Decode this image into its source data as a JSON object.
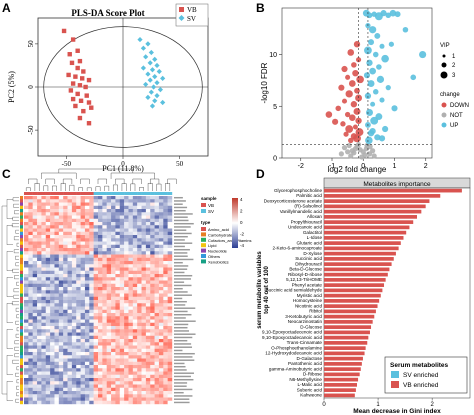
{
  "colors": {
    "vb": "#d9534f",
    "sv": "#5bc0de",
    "not": "#b0b0b0",
    "bar_red": "#d9534f",
    "heat_hi": "#c0392b",
    "heat_lo": "#2c3e94"
  },
  "panels": {
    "A": {
      "label": "A",
      "title": "PLS-DA Score Plot",
      "xlabel": "PC1 (11.8%)",
      "ylabel": "PC2 (5%)",
      "legend": [
        "VB",
        "SV"
      ]
    },
    "B": {
      "label": "B",
      "xlabel": "log2 fold change",
      "ylabel": "-log10 FDR",
      "vip_title": "VIP",
      "vip_values": [
        "1",
        "2",
        "3"
      ],
      "change_title": "change",
      "change_values": [
        "DOWN",
        "NOT",
        "UP"
      ]
    },
    "C": {
      "label": "C",
      "sample_title": "sample",
      "sample_values": [
        "VB",
        "SV"
      ],
      "type_title": "type",
      "type_values": [
        "Amino_acid",
        "Carbohydrate",
        "Cofactors_and_Vitamins",
        "Lipid",
        "Nucleotide",
        "Others",
        "Xenobiotics"
      ],
      "scale_ticks": [
        "4",
        "2",
        "0",
        "-2",
        "-4"
      ]
    },
    "D": {
      "label": "D",
      "title": "Metabolites importance",
      "ylabel_line1": "serum metabolite variables",
      "ylabel_line2": "top 40 out of 100",
      "xlabel": "Mean decrease in Gini index",
      "legend_title": "Serum metabolites",
      "legend_items": [
        "SV enriched",
        "VB enriched"
      ]
    }
  },
  "chart_data": [
    {
      "type": "scatter",
      "title": "PLS-DA Score Plot",
      "xlabel": "PC1 (11.8%)",
      "ylabel": "PC2 (5%)",
      "xlim": [
        -75,
        75
      ],
      "ylim": [
        -80,
        80
      ],
      "xticks": [
        "-50",
        "0",
        "50"
      ],
      "yticks": [
        "50",
        "0",
        "-50"
      ],
      "series": [
        {
          "name": "VB",
          "points": [
            [
              -52,
              65
            ],
            [
              -44,
              55
            ],
            [
              -40,
              42
            ],
            [
              -47,
              38
            ],
            [
              -38,
              30
            ],
            [
              -45,
              28
            ],
            [
              -40,
              22
            ],
            [
              -35,
              18
            ],
            [
              -48,
              14
            ],
            [
              -42,
              12
            ],
            [
              -36,
              10
            ],
            [
              -30,
              8
            ],
            [
              -44,
              4
            ],
            [
              -38,
              2
            ],
            [
              -33,
              0
            ],
            [
              -46,
              -4
            ],
            [
              -40,
              -8
            ],
            [
              -32,
              -10
            ],
            [
              -44,
              -14
            ],
            [
              -37,
              -16
            ],
            [
              -30,
              -18
            ],
            [
              -42,
              -22
            ],
            [
              -35,
              -28
            ],
            [
              -28,
              -24
            ],
            [
              -38,
              -36
            ],
            [
              -30,
              -42
            ]
          ]
        },
        {
          "name": "SV",
          "points": [
            [
              15,
              55
            ],
            [
              22,
              50
            ],
            [
              18,
              45
            ],
            [
              25,
              40
            ],
            [
              20,
              35
            ],
            [
              28,
              32
            ],
            [
              24,
              28
            ],
            [
              30,
              25
            ],
            [
              18,
              22
            ],
            [
              26,
              20
            ],
            [
              32,
              18
            ],
            [
              22,
              15
            ],
            [
              28,
              12
            ],
            [
              35,
              10
            ],
            [
              24,
              8
            ],
            [
              30,
              5
            ],
            [
              20,
              3
            ],
            [
              27,
              0
            ],
            [
              33,
              -3
            ],
            [
              25,
              -6
            ],
            [
              30,
              -10
            ],
            [
              22,
              -12
            ],
            [
              28,
              -16
            ],
            [
              35,
              -18
            ],
            [
              26,
              -22
            ]
          ]
        }
      ]
    },
    {
      "type": "scatter",
      "title": "",
      "xlabel": "log2 fold change",
      "ylabel": "-log10 FDR",
      "xlim": [
        -2.6,
        2.2
      ],
      "ylim": [
        0,
        14.5
      ],
      "xticks": [
        "-2",
        "-1",
        "0",
        "1",
        "2"
      ],
      "yticks": [
        "0",
        "5",
        "10"
      ],
      "series": [
        {
          "name": "DOWN",
          "points": [
            [
              -0.2,
              11.0
            ],
            [
              -0.4,
              10.2
            ],
            [
              -0.15,
              9.5
            ],
            [
              -0.3,
              9.0
            ],
            [
              -0.6,
              8.6
            ],
            [
              -0.25,
              8.2
            ],
            [
              -0.5,
              7.8
            ],
            [
              -0.1,
              7.6
            ],
            [
              -0.35,
              7.2
            ],
            [
              -0.7,
              6.8
            ],
            [
              -0.2,
              6.5
            ],
            [
              -0.45,
              6.2
            ],
            [
              -0.15,
              5.8
            ],
            [
              -0.6,
              5.5
            ],
            [
              -0.3,
              5.2
            ],
            [
              -0.8,
              4.8
            ],
            [
              -0.2,
              4.5
            ],
            [
              -0.5,
              4.2
            ],
            [
              -0.35,
              3.9
            ],
            [
              -0.15,
              3.6
            ],
            [
              -0.65,
              3.3
            ],
            [
              -0.25,
              3.0
            ],
            [
              -0.45,
              2.8
            ],
            [
              -0.12,
              2.5
            ],
            [
              -0.55,
              2.3
            ],
            [
              -0.3,
              2.1
            ],
            [
              -0.2,
              1.9
            ],
            [
              -0.4,
              1.7
            ],
            [
              -0.9,
              3.5
            ],
            [
              -1.1,
              4.2
            ]
          ]
        },
        {
          "name": "NOT",
          "points": [
            [
              -0.3,
              0.5
            ],
            [
              -0.1,
              0.8
            ],
            [
              0.05,
              0.3
            ],
            [
              -0.5,
              0.6
            ],
            [
              -0.2,
              1.1
            ],
            [
              0.1,
              0.9
            ],
            [
              -0.4,
              0.2
            ],
            [
              0.2,
              0.4
            ],
            [
              -0.6,
              1.0
            ],
            [
              0.3,
              0.7
            ],
            [
              -0.15,
              1.3
            ],
            [
              0.12,
              1.2
            ],
            [
              -0.05,
              0.1
            ],
            [
              -0.25,
              0.9
            ],
            [
              0.22,
              1.1
            ],
            [
              -0.7,
              0.4
            ],
            [
              0.35,
              0.2
            ],
            [
              -0.45,
              1.2
            ],
            [
              0.0,
              0.6
            ],
            [
              -0.35,
              0.7
            ]
          ]
        },
        {
          "name": "UP",
          "points": [
            [
              0.1,
              14.0
            ],
            [
              0.2,
              13.8
            ],
            [
              0.35,
              13.9
            ],
            [
              0.5,
              13.7
            ],
            [
              0.65,
              14.0
            ],
            [
              0.8,
              13.8
            ],
            [
              0.95,
              14.0
            ],
            [
              1.1,
              13.9
            ],
            [
              0.15,
              12.8
            ],
            [
              0.3,
              12.4
            ],
            [
              0.45,
              11.8
            ],
            [
              0.25,
              11.2
            ],
            [
              0.6,
              10.8
            ],
            [
              0.15,
              10.4
            ],
            [
              0.4,
              10.0
            ],
            [
              0.7,
              9.6
            ],
            [
              0.2,
              9.2
            ],
            [
              0.5,
              8.8
            ],
            [
              0.3,
              8.4
            ],
            [
              0.12,
              8.0
            ],
            [
              0.55,
              7.6
            ],
            [
              0.25,
              7.2
            ],
            [
              0.8,
              6.8
            ],
            [
              0.4,
              6.4
            ],
            [
              0.15,
              6.0
            ],
            [
              0.6,
              5.6
            ],
            [
              0.3,
              5.2
            ],
            [
              1.0,
              4.8
            ],
            [
              0.2,
              4.4
            ],
            [
              0.5,
              4.0
            ],
            [
              0.35,
              3.6
            ],
            [
              0.15,
              3.2
            ],
            [
              0.7,
              2.8
            ],
            [
              0.25,
              2.4
            ],
            [
              0.45,
              2.0
            ],
            [
              0.18,
              1.7
            ],
            [
              0.6,
              1.9
            ],
            [
              0.3,
              2.6
            ],
            [
              1.6,
              7.8
            ],
            [
              1.35,
              12.4
            ],
            [
              1.9,
              10.0
            ],
            [
              0.9,
              11.0
            ]
          ]
        }
      ]
    },
    {
      "type": "heatmap",
      "title": "",
      "rows": 64,
      "cols": 34,
      "column_groups": [
        "VB",
        "SV"
      ],
      "scale": [
        -4,
        4
      ]
    },
    {
      "type": "bar",
      "title": "Metabolites importance",
      "xlabel": "Mean decrease in Gini index",
      "ylabel": "serum metabolite variables top 40 out of 100",
      "categories": [
        "Glycerophosphocholine",
        "Palmitic acid",
        "Deoxycorticosterone acetate",
        "(R)-Salsolinol",
        "Vanillylmandelic acid",
        "Alloxan",
        "Propylthiouracil",
        "Undecanoic acid",
        "Galactitol",
        "L-Idose",
        "Glutaric acid",
        "2-Keto-6-aminocaproate",
        "D-Xylose",
        "Succinic acid",
        "Dihydrouracil",
        "Beta-D-Glucose",
        "Ribosyl-D-ribose",
        "5,12,13-TriHOME",
        "Phenyl acetate",
        "Succinic acid semialdehyde",
        "Myristic acid",
        "Homocysteine",
        "Nicotinic acid",
        "Ribitol",
        "3-Ketobutyric acid",
        "Neocarzinostatin",
        "D-Glucose",
        "9,10-Epoxyoctadecenoic acid",
        "9,10-Epoxyoctadecanoic acid",
        "Trans-Cinnamate",
        "O-Phosphoethanolamine",
        "12-Hydroxydodecanoic acid",
        "D-Galactose",
        "Pantothenic acid",
        "gamma-Aminobutyric acid",
        "D-Ribose",
        "N6-Methyllysine",
        "L-Malic acid",
        "Suberic acid",
        "Kahweone"
      ],
      "values": [
        2.55,
        2.15,
        1.95,
        1.88,
        1.8,
        1.72,
        1.65,
        1.58,
        1.52,
        1.47,
        1.42,
        1.38,
        1.33,
        1.29,
        1.25,
        1.21,
        1.18,
        1.14,
        1.11,
        1.08,
        1.05,
        1.02,
        0.99,
        0.96,
        0.93,
        0.9,
        0.87,
        0.85,
        0.82,
        0.8,
        0.77,
        0.75,
        0.72,
        0.7,
        0.68,
        0.66,
        0.63,
        0.61,
        0.59,
        0.57
      ],
      "enriched": [
        "VB",
        "VB",
        "VB",
        "VB",
        "VB",
        "VB",
        "VB",
        "VB",
        "VB",
        "VB",
        "VB",
        "VB",
        "VB",
        "VB",
        "VB",
        "VB",
        "VB",
        "VB",
        "VB",
        "VB",
        "VB",
        "VB",
        "VB",
        "VB",
        "VB",
        "VB",
        "VB",
        "VB",
        "VB",
        "VB",
        "VB",
        "VB",
        "VB",
        "VB",
        "VB",
        "VB",
        "VB",
        "VB",
        "VB",
        "VB"
      ],
      "xticks": [
        "0",
        "1",
        "2"
      ],
      "xlim": [
        0,
        2.7
      ]
    }
  ]
}
